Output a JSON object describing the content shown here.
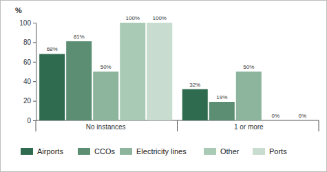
{
  "chart_data": {
    "type": "bar",
    "y_label": "%",
    "categories": [
      "No instances",
      "1 or more"
    ],
    "series": [
      {
        "name": "Airports",
        "color": "#2f6b4f",
        "values": [
          68,
          32
        ],
        "value_labels": [
          "68%",
          "32%"
        ]
      },
      {
        "name": "CCOs",
        "color": "#5b8e73",
        "values": [
          81,
          19
        ],
        "value_labels": [
          "81%",
          "19%"
        ]
      },
      {
        "name": "Electricity lines",
        "color": "#8db59d",
        "values": [
          50,
          50
        ],
        "value_labels": [
          "50%",
          "50%"
        ]
      },
      {
        "name": "Other",
        "color": "#a9cbb5",
        "values": [
          100,
          0
        ],
        "value_labels": [
          "100%",
          "0%"
        ]
      },
      {
        "name": "Ports",
        "color": "#c8dccf",
        "values": [
          100,
          0
        ],
        "value_labels": [
          "100%",
          "0%"
        ]
      }
    ],
    "ylim": [
      0,
      100
    ],
    "yticks": [
      0,
      20,
      40,
      60,
      80,
      100
    ],
    "data_labels": true,
    "legend": "bottom"
  }
}
